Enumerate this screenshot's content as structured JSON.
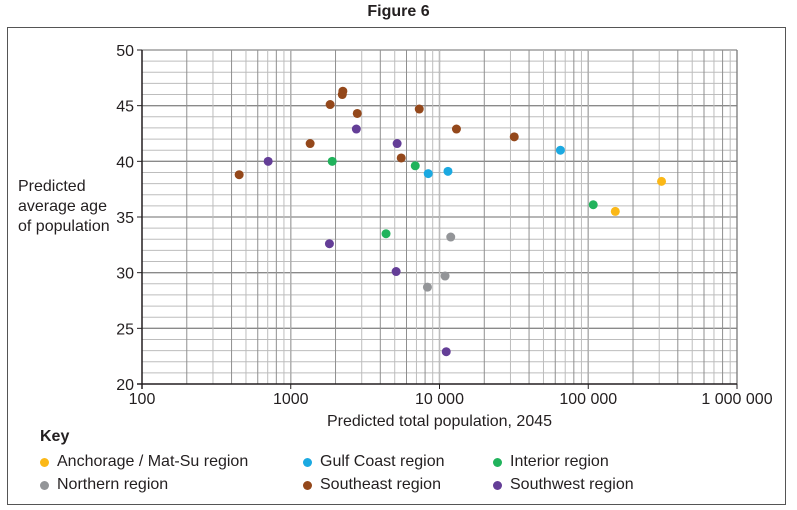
{
  "figure_title": "Figure 6",
  "chart_data": {
    "type": "scatter",
    "xlabel": "Predicted total population, 2045",
    "ylabel": "Predicted average age of population",
    "x_scale": "log",
    "xlim": [
      100,
      1000000
    ],
    "ylim": [
      20,
      50
    ],
    "x_ticks": [
      "100",
      "1000",
      "10 000",
      "100 000",
      "1 000 000"
    ],
    "y_ticks": [
      "20",
      "25",
      "30",
      "35",
      "40",
      "45",
      "50"
    ],
    "grid": true,
    "legend_title": "Key",
    "legend_placement": "bottom",
    "series": [
      {
        "name": "Anchorage / Mat-Su region",
        "color": "#fbb817",
        "points": [
          [
            152000,
            35.5
          ],
          [
            311000,
            38.2
          ]
        ]
      },
      {
        "name": "Gulf Coast region",
        "color": "#1ba9e1",
        "points": [
          [
            8400,
            38.9
          ],
          [
            11400,
            39.1
          ],
          [
            65000,
            41.0
          ]
        ]
      },
      {
        "name": "Interior region",
        "color": "#21b35c",
        "points": [
          [
            1900,
            40.0
          ],
          [
            6870,
            39.6
          ],
          [
            4370,
            33.5
          ],
          [
            108000,
            36.1
          ]
        ]
      },
      {
        "name": "Northern region",
        "color": "#939598",
        "points": [
          [
            11900,
            33.2
          ],
          [
            10900,
            29.7
          ],
          [
            8300,
            28.7
          ]
        ]
      },
      {
        "name": "Southeast region",
        "color": "#94481b",
        "points": [
          [
            450,
            38.8
          ],
          [
            1350,
            41.6
          ],
          [
            1840,
            45.1
          ],
          [
            2220,
            46.0
          ],
          [
            2240,
            46.3
          ],
          [
            2800,
            44.3
          ],
          [
            5530,
            40.3
          ],
          [
            7310,
            44.7
          ],
          [
            13000,
            42.9
          ],
          [
            31800,
            42.2
          ]
        ]
      },
      {
        "name": "Southwest region",
        "color": "#643e97",
        "points": [
          [
            705,
            40.0
          ],
          [
            2760,
            42.9
          ],
          [
            5190,
            41.6
          ],
          [
            1820,
            32.6
          ],
          [
            5110,
            30.1
          ],
          [
            11100,
            22.9
          ]
        ]
      }
    ]
  }
}
